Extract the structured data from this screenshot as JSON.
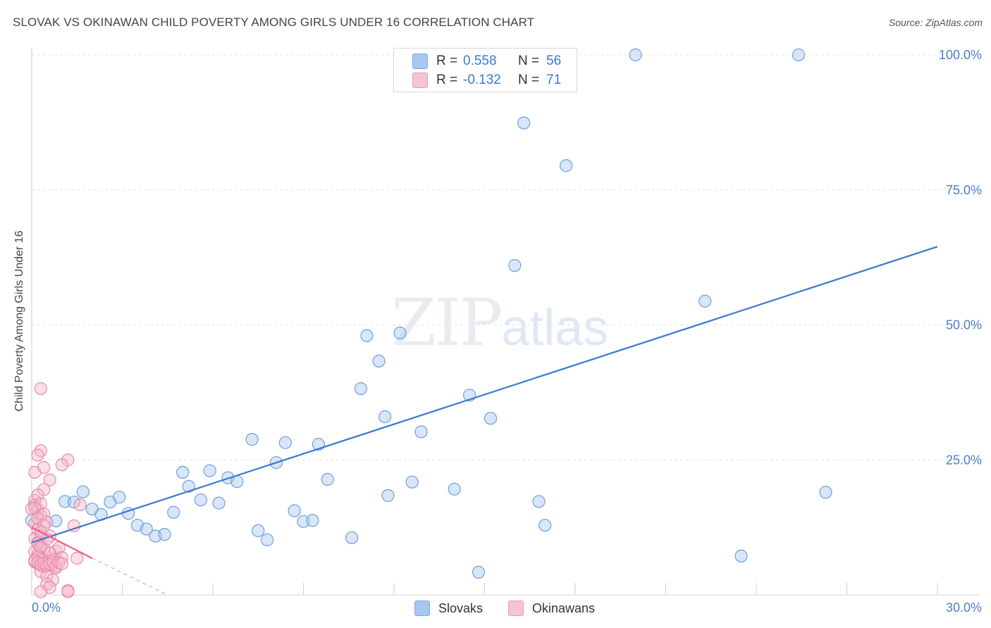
{
  "header": {
    "title": "SLOVAK VS OKINAWAN CHILD POVERTY AMONG GIRLS UNDER 16 CORRELATION CHART",
    "source": "Source: ZipAtlas.com"
  },
  "watermark": {
    "zip": "ZIP",
    "atlas": "atlas"
  },
  "legend": {
    "rows": [
      {
        "r_label": "R =",
        "r_value": "0.558",
        "n_label": "N =",
        "n_value": "56",
        "color": "#a8c8f0"
      },
      {
        "r_label": "R =",
        "r_value": "-0.132",
        "n_label": "N =",
        "n_value": "71",
        "color": "#f5b8cb"
      }
    ]
  },
  "bottom_legend": {
    "series1": "Slovaks",
    "series2": "Okinawans"
  },
  "chart_data": {
    "type": "scatter",
    "title": "SLOVAK VS OKINAWAN CHILD POVERTY AMONG GIRLS UNDER 16 CORRELATION CHART",
    "xlabel": "",
    "ylabel": "Child Poverty Among Girls Under 16",
    "xlim": [
      0,
      30
    ],
    "ylim": [
      0,
      100
    ],
    "x_tick_labels": [
      "0.0%",
      "30.0%"
    ],
    "y_ticks": [
      25,
      50,
      75,
      100
    ],
    "y_tick_labels": [
      "25.0%",
      "50.0%",
      "75.0%",
      "100.0%"
    ],
    "grid": true,
    "legend_position": "top-center",
    "series": [
      {
        "name": "Slovaks",
        "color": "#3a78d0",
        "fill": "#a8c8f0",
        "trend": {
          "x": [
            0,
            30
          ],
          "y": [
            9.7,
            64.5
          ]
        },
        "points": [
          [
            0.1,
            16.6
          ],
          [
            0.8,
            13.7
          ],
          [
            1.1,
            17.3
          ],
          [
            1.4,
            17.2
          ],
          [
            1.7,
            19.1
          ],
          [
            2.0,
            15.9
          ],
          [
            2.3,
            14.9
          ],
          [
            2.6,
            17.2
          ],
          [
            2.9,
            18.1
          ],
          [
            3.2,
            15.1
          ],
          [
            3.5,
            12.9
          ],
          [
            3.8,
            12.2
          ],
          [
            4.1,
            10.9
          ],
          [
            4.4,
            11.2
          ],
          [
            4.7,
            15.3
          ],
          [
            5.0,
            22.7
          ],
          [
            5.2,
            20.1
          ],
          [
            5.6,
            17.6
          ],
          [
            5.9,
            23.0
          ],
          [
            6.2,
            17.0
          ],
          [
            6.5,
            21.7
          ],
          [
            6.8,
            21.0
          ],
          [
            7.3,
            28.8
          ],
          [
            7.5,
            11.9
          ],
          [
            7.8,
            10.2
          ],
          [
            8.1,
            24.5
          ],
          [
            8.4,
            28.2
          ],
          [
            8.7,
            15.6
          ],
          [
            9.0,
            13.6
          ],
          [
            9.3,
            13.8
          ],
          [
            9.5,
            27.9
          ],
          [
            9.8,
            21.4
          ],
          [
            10.6,
            10.6
          ],
          [
            10.9,
            38.2
          ],
          [
            11.1,
            48.0
          ],
          [
            11.5,
            43.3
          ],
          [
            11.7,
            33.0
          ],
          [
            11.8,
            18.4
          ],
          [
            12.2,
            48.5
          ],
          [
            12.9,
            30.2
          ],
          [
            12.6,
            20.9
          ],
          [
            14.0,
            19.6
          ],
          [
            14.5,
            37.0
          ],
          [
            14.8,
            4.2
          ],
          [
            15.2,
            32.7
          ],
          [
            16.0,
            61.0
          ],
          [
            16.3,
            87.4
          ],
          [
            16.8,
            17.3
          ],
          [
            17.0,
            12.9
          ],
          [
            17.7,
            79.5
          ],
          [
            20.0,
            100.0
          ],
          [
            22.3,
            54.4
          ],
          [
            23.5,
            7.2
          ],
          [
            25.4,
            100.0
          ],
          [
            26.3,
            19.0
          ],
          [
            0.0,
            13.8
          ]
        ]
      },
      {
        "name": "Okinawans",
        "color": "#e8628c",
        "fill": "#f5b8cb",
        "trend": {
          "x": [
            0,
            2.0
          ],
          "y": [
            12.5,
            6.8
          ]
        },
        "trend_dashed": {
          "x": [
            2.0,
            4.5
          ],
          "y": [
            6.8,
            0.0
          ]
        },
        "points": [
          [
            0.1,
            17.5
          ],
          [
            0.2,
            15.8
          ],
          [
            0.3,
            14.7
          ],
          [
            0.1,
            13.2
          ],
          [
            0.2,
            12.1
          ],
          [
            0.3,
            11.0
          ],
          [
            0.1,
            10.4
          ],
          [
            0.2,
            9.7
          ],
          [
            0.3,
            9.1
          ],
          [
            0.4,
            8.6
          ],
          [
            0.1,
            8.0
          ],
          [
            0.2,
            7.4
          ],
          [
            0.3,
            6.9
          ],
          [
            0.4,
            6.5
          ],
          [
            0.1,
            6.1
          ],
          [
            0.2,
            5.8
          ],
          [
            0.3,
            5.5
          ],
          [
            0.4,
            5.2
          ],
          [
            0.5,
            5.9
          ],
          [
            0.6,
            6.3
          ],
          [
            0.7,
            5.6
          ],
          [
            0.8,
            5.0
          ],
          [
            0.3,
            4.3
          ],
          [
            0.5,
            3.5
          ],
          [
            0.7,
            2.8
          ],
          [
            0.5,
            2.0
          ],
          [
            0.6,
            1.4
          ],
          [
            0.3,
            0.6
          ],
          [
            1.2,
            0.8
          ],
          [
            1.2,
            0.6
          ],
          [
            0.3,
            38.2
          ],
          [
            0.3,
            26.7
          ],
          [
            0.2,
            25.9
          ],
          [
            1.2,
            25.0
          ],
          [
            0.4,
            23.6
          ],
          [
            1.0,
            24.1
          ],
          [
            0.6,
            21.3
          ],
          [
            0.1,
            22.7
          ],
          [
            0.4,
            19.5
          ],
          [
            0.2,
            18.5
          ],
          [
            0.3,
            16.9
          ],
          [
            0.1,
            16.1
          ],
          [
            0.0,
            16.0
          ],
          [
            0.4,
            15.0
          ],
          [
            0.2,
            14.2
          ],
          [
            0.5,
            13.5
          ],
          [
            0.4,
            12.8
          ],
          [
            0.3,
            11.7
          ],
          [
            0.6,
            10.9
          ],
          [
            0.5,
            10.3
          ],
          [
            0.2,
            9.5
          ],
          [
            0.3,
            8.8
          ],
          [
            0.8,
            8.1
          ],
          [
            0.9,
            8.7
          ],
          [
            0.6,
            7.8
          ],
          [
            0.2,
            7.0
          ],
          [
            0.7,
            6.6
          ],
          [
            1.0,
            6.9
          ],
          [
            1.5,
            6.8
          ],
          [
            1.4,
            12.8
          ],
          [
            1.6,
            16.7
          ],
          [
            0.1,
            6.4
          ],
          [
            0.2,
            6.0
          ],
          [
            0.3,
            5.6
          ],
          [
            0.4,
            5.9
          ],
          [
            0.5,
            5.4
          ],
          [
            0.6,
            5.7
          ],
          [
            0.7,
            6.1
          ],
          [
            0.8,
            5.3
          ],
          [
            0.9,
            6.0
          ],
          [
            1.0,
            5.8
          ]
        ]
      }
    ]
  }
}
